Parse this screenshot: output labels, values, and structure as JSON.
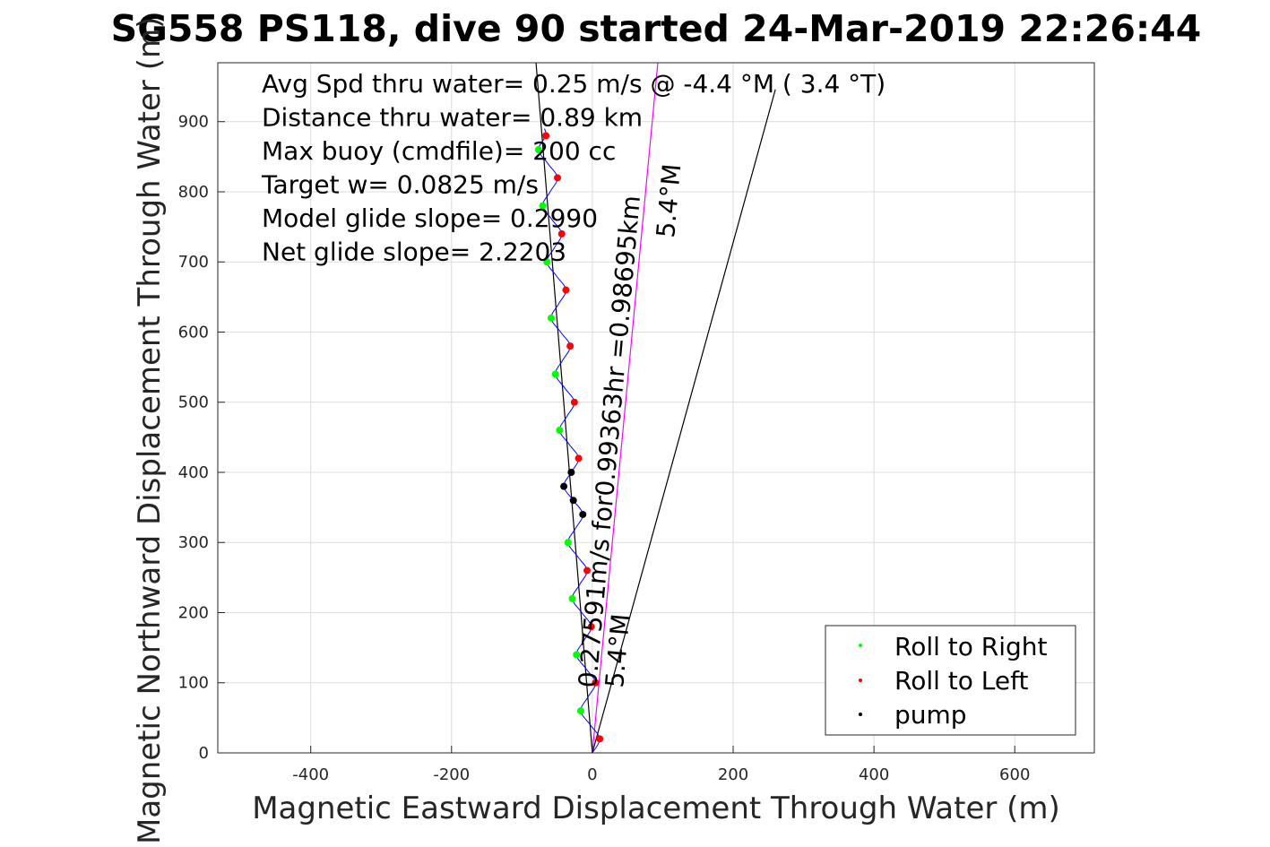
{
  "chart_data": {
    "type": "line",
    "title": "SG558 PS118, dive 90 started 24-Mar-2019 22:26:44",
    "xlabel": "Magnetic Eastward Displacement Through Water (m)",
    "ylabel": "Magnetic Northward Displacement Through Water (m)",
    "xlim": [
      -532,
      713
    ],
    "ylim": [
      0,
      984
    ],
    "xticks": [
      -400,
      -200,
      0,
      200,
      400,
      600
    ],
    "yticks": [
      0,
      100,
      200,
      300,
      400,
      500,
      600,
      700,
      800,
      900
    ],
    "grid": true,
    "annotations": [
      "Avg Spd thru water=  0.25 m/s @  -4.4 °M (  3.4 °T)",
      "Distance thru water=  0.89 km",
      "Max buoy (cmdfile)= 200 cc",
      "Target w= 0.0825 m/s",
      "Model glide slope= 0.2990",
      "Net glide slope= 2.2203"
    ],
    "vector_label": "0.27591m/s for0.99363hr =0.98695km",
    "vector_heading_label": "5.4°M",
    "vector_heading_label_2": "5.4°M",
    "track": [
      [
        0,
        0
      ],
      [
        10.5,
        20
      ],
      [
        -3,
        40
      ],
      [
        -16.5,
        60
      ],
      [
        -6,
        80
      ],
      [
        4.5,
        100
      ],
      [
        -9,
        120
      ],
      [
        -22.5,
        140
      ],
      [
        -12,
        160
      ],
      [
        -1.5,
        180
      ],
      [
        -15,
        200
      ],
      [
        -28.5,
        220
      ],
      [
        -18,
        240
      ],
      [
        -7.5,
        260
      ],
      [
        -21,
        280
      ],
      [
        -34.5,
        300
      ],
      [
        -24,
        320
      ],
      [
        -13.5,
        340
      ],
      [
        -27,
        360
      ],
      [
        -40.5,
        380
      ],
      [
        -30,
        400
      ],
      [
        -19.5,
        420
      ],
      [
        -33,
        440
      ],
      [
        -46.5,
        460
      ],
      [
        -36,
        480
      ],
      [
        -25.5,
        500
      ],
      [
        -39,
        520
      ],
      [
        -52.5,
        540
      ],
      [
        -42,
        560
      ],
      [
        -31.5,
        580
      ],
      [
        -45,
        600
      ],
      [
        -58.5,
        620
      ],
      [
        -48,
        640
      ],
      [
        -37.5,
        660
      ],
      [
        -51,
        680
      ],
      [
        -64.5,
        700
      ],
      [
        -54,
        720
      ],
      [
        -43.5,
        740
      ],
      [
        -57,
        760
      ],
      [
        -70.5,
        780
      ],
      [
        -60,
        800
      ],
      [
        -49.5,
        820
      ],
      [
        -63,
        840
      ],
      [
        -76.5,
        860
      ],
      [
        -66,
        880
      ],
      [
        -68,
        890
      ]
    ],
    "lines": [
      {
        "name": "heading-line-left",
        "from": [
          0,
          0
        ],
        "to": [
          -80,
          984
        ],
        "color": "#000000"
      },
      {
        "name": "vector-line",
        "from": [
          0,
          0
        ],
        "to": [
          93,
          984
        ],
        "color": "#ff00ff"
      },
      {
        "name": "heading-line-right",
        "from": [
          0,
          0
        ],
        "to": [
          260,
          946
        ],
        "color": "#000000"
      }
    ],
    "pump_range": [
      330,
      410
    ],
    "series": [
      {
        "name": "Roll to Right",
        "color": "#00ff00"
      },
      {
        "name": "Roll to Left",
        "color": "#ff0000"
      },
      {
        "name": "pump",
        "color": "#000000"
      }
    ],
    "legend_position": "bottom-right",
    "track_color": "#0000ff"
  }
}
